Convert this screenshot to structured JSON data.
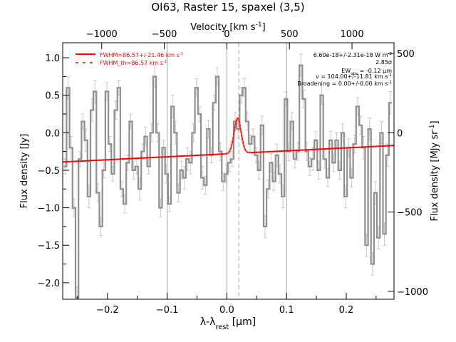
{
  "chart_data": {
    "type": "line",
    "title": "OI63, Raster 15, spaxel (3,5)",
    "xlabel": "λ-λ",
    "xlabel_sub": "rest",
    "xlabel_unit": " [μm]",
    "ylabel": "Flux density [Jy]",
    "top_label": "Velocity [km s",
    "top_label_sup": "-1",
    "top_label_end": "]",
    "right_label": "Flux density [MJy sr",
    "right_label_sup": "-1",
    "right_label_end": "]",
    "xlim": [
      -0.275,
      0.28
    ],
    "ylim": [
      -2.22,
      1.2
    ],
    "x_ticks": [
      -0.2,
      -0.1,
      0.0,
      0.1,
      0.2
    ],
    "x_tick_labels": [
      "−0.2",
      "−0.1",
      "0.0",
      "0.1",
      "0.2"
    ],
    "y_ticks": [
      -2.0,
      -1.5,
      -1.0,
      -0.5,
      0.0,
      0.5,
      1.0
    ],
    "y_tick_labels": [
      "−2.0",
      "−1.5",
      "−1.0",
      "−0.5",
      "0.0",
      "0.5",
      "1.0"
    ],
    "top_axis": {
      "vel_per_um": 4770,
      "ticks": [
        -1000,
        -500,
        0,
        500,
        1000
      ],
      "tick_labels": [
        "−1000",
        "−500",
        "0",
        "500",
        "1000"
      ]
    },
    "right_axis": {
      "scale": 473,
      "ticks": [
        -1000,
        -500,
        0,
        500
      ],
      "tick_labels": [
        "−1000",
        "−500",
        "0",
        "500"
      ]
    },
    "vertical_lines": {
      "solid": [
        -0.1,
        0.0,
        0.1
      ],
      "dashed": [
        0.02
      ]
    },
    "legend": [
      {
        "label": "FWHM=86.57+/-21.46 km s",
        "sup": "-1",
        "style": "solid",
        "color": "#ff0000"
      },
      {
        "label": "FWHM_th=86.57 km s",
        "sup": "-1",
        "style": "dashed",
        "color": "#ff0000"
      }
    ],
    "annotations": {
      "flux": "6.60e-18+/-2.31e-18 W m",
      "flux_sup": "-2",
      "sigma": "2.85σ",
      "ew": "EW",
      "ew_sub": "obs",
      "ew_rest": " = -0.12 μm",
      "velocity": "v = 104.00+/-11.81 km s",
      "velocity_sup": "-1",
      "broadening": "Broadening = 0.00+/-0.00 km s",
      "broadening_sup": "-1"
    },
    "series": [
      {
        "name": "spectrum",
        "style": "step",
        "color": "#909090",
        "x": [
          -0.271,
          -0.266,
          -0.261,
          -0.256,
          -0.251,
          -0.246,
          -0.241,
          -0.236,
          -0.231,
          -0.226,
          -0.221,
          -0.216,
          -0.211,
          -0.206,
          -0.201,
          -0.196,
          -0.191,
          -0.186,
          -0.181,
          -0.176,
          -0.171,
          -0.166,
          -0.161,
          -0.156,
          -0.151,
          -0.146,
          -0.141,
          -0.136,
          -0.131,
          -0.126,
          -0.121,
          -0.116,
          -0.111,
          -0.106,
          -0.101,
          -0.096,
          -0.091,
          -0.086,
          -0.081,
          -0.076,
          -0.071,
          -0.066,
          -0.061,
          -0.056,
          -0.051,
          -0.046,
          -0.041,
          -0.036,
          -0.031,
          -0.026,
          -0.021,
          -0.016,
          -0.011,
          -0.006,
          -0.001,
          0.004,
          0.009,
          0.014,
          0.019,
          0.024,
          0.029,
          0.034,
          0.039,
          0.044,
          0.049,
          0.054,
          0.059,
          0.064,
          0.069,
          0.074,
          0.079,
          0.084,
          0.089,
          0.094,
          0.099,
          0.104,
          0.109,
          0.114,
          0.119,
          0.124,
          0.129,
          0.134,
          0.139,
          0.144,
          0.149,
          0.154,
          0.159,
          0.164,
          0.169,
          0.174,
          0.179,
          0.184,
          0.189,
          0.194,
          0.199,
          0.204,
          0.209,
          0.214,
          0.219,
          0.224,
          0.229,
          0.234,
          0.239,
          0.244,
          0.249,
          0.254,
          0.259,
          0.264,
          0.269,
          0.274
        ],
        "values": [
          -0.45,
          0.6,
          -0.2,
          -1.0,
          -2.2,
          -0.35,
          0.15,
          -0.1,
          -0.85,
          0.3,
          0.55,
          -0.8,
          -1.25,
          -0.5,
          0.55,
          -0.15,
          -0.55,
          0.3,
          0.6,
          -0.75,
          -0.95,
          -0.4,
          0.15,
          -0.5,
          -0.45,
          -0.75,
          -0.25,
          -0.05,
          -0.45,
          0.0,
          0.75,
          0.0,
          -1.0,
          -0.2,
          -0.55,
          -0.95,
          0.35,
          0.0,
          -0.8,
          -0.5,
          -0.6,
          -0.35,
          -0.4,
          0.0,
          0.6,
          0.25,
          -0.6,
          -0.7,
          0.05,
          -0.3,
          0.4,
          0.75,
          -0.25,
          -0.65,
          -0.55,
          -0.4,
          -0.35,
          0.15,
          0.05,
          0.5,
          0.6,
          0.15,
          -0.15,
          -0.05,
          -0.3,
          -0.5,
          0.1,
          -1.25,
          -0.75,
          -0.4,
          -0.65,
          -0.3,
          -0.55,
          -0.85,
          0.45,
          -0.25,
          0.15,
          -0.35,
          -0.25,
          0.9,
          0.45,
          -0.25,
          -0.45,
          -0.35,
          -0.1,
          -0.5,
          0.5,
          -0.35,
          -0.6,
          -0.1,
          -0.4,
          -0.1,
          -0.5,
          0.0,
          -0.85,
          -0.2,
          -0.6,
          -0.15,
          0.35,
          0.1,
          -0.2,
          -1.5,
          0.05,
          -1.75,
          -0.8,
          -1.4,
          0.0,
          -1.35,
          -0.3,
          0.4
        ],
        "errors": [
          0.1,
          0.15,
          0.15,
          0.12,
          0.15,
          0.1,
          0.1,
          0.15,
          0.15,
          0.15,
          0.15,
          0.12,
          0.12,
          0.1,
          0.12,
          0.1,
          0.1,
          0.12,
          0.1,
          0.1,
          0.12,
          0.1,
          0.1,
          0.12,
          0.1,
          0.15,
          0.1,
          0.12,
          0.1,
          0.12,
          0.15,
          0.12,
          0.12,
          0.1,
          0.12,
          0.1,
          0.15,
          0.15,
          0.12,
          0.12,
          0.15,
          0.15,
          0.15,
          0.12,
          0.12,
          0.1,
          0.15,
          0.12,
          0.12,
          0.1,
          0.1,
          0.12,
          0.12,
          0.12,
          0.12,
          0.12,
          0.1,
          0.12,
          0.12,
          0.1,
          0.12,
          0.12,
          0.12,
          0.1,
          0.1,
          0.12,
          0.12,
          0.15,
          0.12,
          0.12,
          0.12,
          0.15,
          0.12,
          0.15,
          0.1,
          0.12,
          0.12,
          0.12,
          0.12,
          0.15,
          0.12,
          0.12,
          0.12,
          0.15,
          0.12,
          0.12,
          0.12,
          0.12,
          0.12,
          0.12,
          0.12,
          0.1,
          0.12,
          0.12,
          0.15,
          0.12,
          0.12,
          0.12,
          0.12,
          0.12,
          0.15,
          0.15,
          0.15,
          0.15,
          0.15,
          0.15,
          0.15,
          0.15,
          0.15,
          0.15
        ]
      },
      {
        "name": "fit",
        "style": "line",
        "color": "#ff0000",
        "baseline": {
          "x": [
            -0.275,
            0.28
          ],
          "y": [
            -0.39,
            -0.17
          ]
        },
        "gaussian": {
          "center": 0.018,
          "amplitude": 0.47,
          "sigma": 0.0058
        }
      }
    ]
  }
}
